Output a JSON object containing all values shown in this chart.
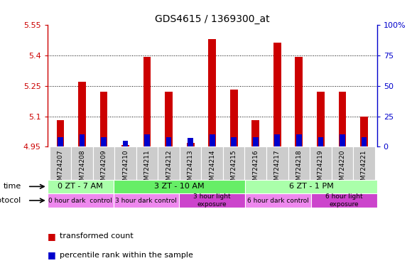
{
  "title": "GDS4615 / 1369300_at",
  "samples": [
    "GSM724207",
    "GSM724208",
    "GSM724209",
    "GSM724210",
    "GSM724211",
    "GSM724212",
    "GSM724213",
    "GSM724214",
    "GSM724215",
    "GSM724216",
    "GSM724217",
    "GSM724218",
    "GSM724219",
    "GSM724220",
    "GSM724221"
  ],
  "transformed_count": [
    5.08,
    5.27,
    5.22,
    4.96,
    5.39,
    5.22,
    4.97,
    5.48,
    5.23,
    5.08,
    5.46,
    5.39,
    5.22,
    5.22,
    5.1
  ],
  "percentile_rank": [
    8,
    10,
    8,
    5,
    10,
    8,
    7,
    10,
    8,
    8,
    10,
    10,
    8,
    10,
    8
  ],
  "bar_bottom": 4.95,
  "ylim_left": [
    4.95,
    5.55
  ],
  "ylim_right": [
    0,
    100
  ],
  "yticks_left": [
    4.95,
    5.1,
    5.25,
    5.4,
    5.55
  ],
  "ytick_labels_left": [
    "4.95",
    "5.1",
    "5.25",
    "5.4",
    "5.55"
  ],
  "yticks_right": [
    0,
    25,
    50,
    75,
    100
  ],
  "ytick_labels_right": [
    "0",
    "25",
    "50",
    "75",
    "100%"
  ],
  "red_color": "#cc0000",
  "blue_color": "#0000cc",
  "time_groups": [
    {
      "label": "0 ZT - 7 AM",
      "start": 0,
      "end": 3,
      "color": "#aaffaa"
    },
    {
      "label": "3 ZT - 10 AM",
      "start": 3,
      "end": 9,
      "color": "#66ee66"
    },
    {
      "label": "6 ZT - 1 PM",
      "start": 9,
      "end": 15,
      "color": "#aaffaa"
    }
  ],
  "protocol_groups": [
    {
      "label": "0 hour dark  control",
      "start": 0,
      "end": 3,
      "color": "#ee88ee"
    },
    {
      "label": "3 hour dark control",
      "start": 3,
      "end": 6,
      "color": "#ee88ee"
    },
    {
      "label": "3 hour light\nexposure",
      "start": 6,
      "end": 9,
      "color": "#cc44cc"
    },
    {
      "label": "6 hour dark control",
      "start": 9,
      "end": 12,
      "color": "#ee88ee"
    },
    {
      "label": "6 hour light\nexposure",
      "start": 12,
      "end": 15,
      "color": "#cc44cc"
    }
  ],
  "xtick_bg_color": "#cccccc",
  "bar_width": 0.35,
  "blue_bar_width": 0.25
}
